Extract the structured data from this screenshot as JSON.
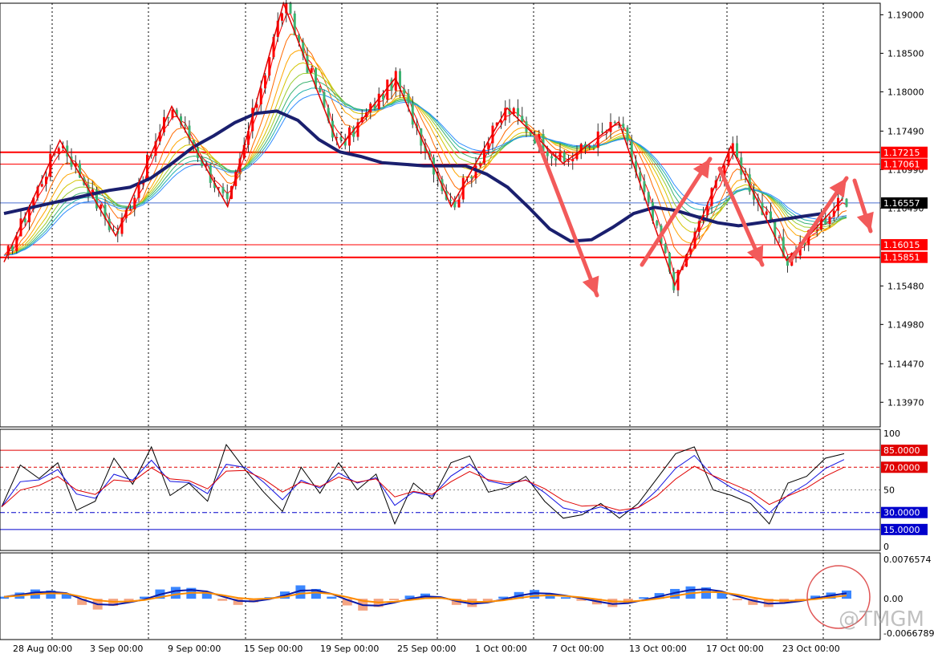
{
  "watermark": "@TMGM",
  "colors": {
    "background": "#ffffff",
    "grid": "#000000",
    "level_line": "#ff0000",
    "current_price_line": "#4a6fcf",
    "slow_ma": "#1a1f6e",
    "red_arrow": "#f25a5a",
    "candle_up": "#ff0000",
    "candle_down": "#3cb371"
  },
  "chart_data": [
    {
      "type": "candlestick",
      "title": "",
      "x_labels": [
        "28 Aug 00:00",
        "3 Sep 00:00",
        "9 Sep 00:00",
        "15 Sep 00:00",
        "19 Sep 00:00",
        "25 Sep 00:00",
        "1 Oct 00:00",
        "7 Oct 00:00",
        "13 Oct 00:00",
        "17 Oct 00:00",
        "23 Oct 00:00"
      ],
      "y_ticks": [
        "1.19000",
        "1.18500",
        "1.18000",
        "1.17490",
        "1.16990",
        "1.16490",
        "1.15480",
        "1.14980",
        "1.14470",
        "1.13970"
      ],
      "ylim": [
        1.1365,
        1.1915
      ],
      "grid": true,
      "zigzag_price": [
        1.1579,
        1.1737,
        1.1613,
        1.1781,
        1.1651,
        1.1915,
        1.1727,
        1.1818,
        1.1651,
        1.1779,
        1.1707,
        1.1761,
        1.1549,
        1.1729,
        1.1581,
        1.1661
      ],
      "levels": [
        {
          "label": "1.17215",
          "value": 1.17215,
          "style": "thick"
        },
        {
          "label": "1.17061",
          "value": 1.17061,
          "style": "thin"
        },
        {
          "label": "1.16015",
          "value": 1.16015,
          "style": "thin"
        },
        {
          "label": "1.15851",
          "value": 1.15851,
          "style": "thick"
        }
      ],
      "current_price": {
        "label": "1.16557",
        "value": 1.16557
      },
      "series": [
        {
          "name": "",
          "values": [
            1.1642,
            1.1648,
            1.1654,
            1.166,
            1.1666,
            1.1672,
            1.1676,
            1.1688,
            1.1707,
            1.1728,
            1.1743,
            1.176,
            1.1772,
            1.1775,
            1.1763,
            1.1738,
            1.1722,
            1.1716,
            1.1708,
            1.1706,
            1.1704,
            1.1704,
            1.1704,
            1.1693,
            1.1676,
            1.165,
            1.1622,
            1.1606,
            1.1608,
            1.1624,
            1.1642,
            1.165,
            1.1646,
            1.1638,
            1.163,
            1.1626,
            1.163,
            1.1634,
            1.1638,
            1.1642
          ]
        }
      ]
    },
    {
      "type": "line",
      "title": "",
      "y_ticks": [
        "100",
        "50",
        "0"
      ],
      "ylim": [
        0,
        100
      ],
      "levels": [
        {
          "label": "85.0000",
          "value": 85
        },
        {
          "label": "70.0000",
          "value": 70
        },
        {
          "label": "30.0000",
          "value": 30
        },
        {
          "label": "15.0000",
          "value": 15
        }
      ],
      "series": [
        {
          "name": "",
          "values": [
            35,
            72,
            60,
            74,
            32,
            40,
            78,
            55,
            88,
            45,
            56,
            40,
            90,
            68,
            48,
            31,
            70,
            47,
            74,
            50,
            64,
            20,
            56,
            42,
            74,
            80,
            48,
            52,
            62,
            40,
            25,
            28,
            38,
            25,
            38,
            60,
            82,
            88,
            50,
            45,
            38,
            20,
            56,
            62,
            78,
            82
          ]
        }
      ]
    },
    {
      "type": "bar",
      "title": "",
      "y_ticks": [
        "0.0076574",
        "0.00",
        "-0.0066789"
      ],
      "ylim": [
        -0.0066789,
        0.0076574
      ],
      "values": [
        0.0004,
        0.0012,
        0.0018,
        0.0016,
        0.001,
        -0.0012,
        -0.0021,
        -0.0014,
        -0.0004,
        0.0004,
        0.0018,
        0.0023,
        0.0021,
        0.0013,
        -0.0004,
        -0.0012,
        -0.0007,
        0.0003,
        0.0014,
        0.0026,
        0.0019,
        0.0004,
        -0.0013,
        -0.0023,
        -0.0016,
        -0.0003,
        0.0006,
        0.001,
        0.0002,
        -0.0012,
        -0.0016,
        -0.0006,
        0.0004,
        0.0013,
        0.0017,
        0.001,
        0.0003,
        -0.0004,
        -0.0011,
        -0.0016,
        -0.0008,
        0.0003,
        0.0011,
        0.0019,
        0.0024,
        0.0022,
        0.0012,
        -0.0003,
        -0.0012,
        -0.0016,
        -0.0008,
        -0.0002,
        0.0006,
        0.0012,
        0.0016
      ]
    }
  ]
}
